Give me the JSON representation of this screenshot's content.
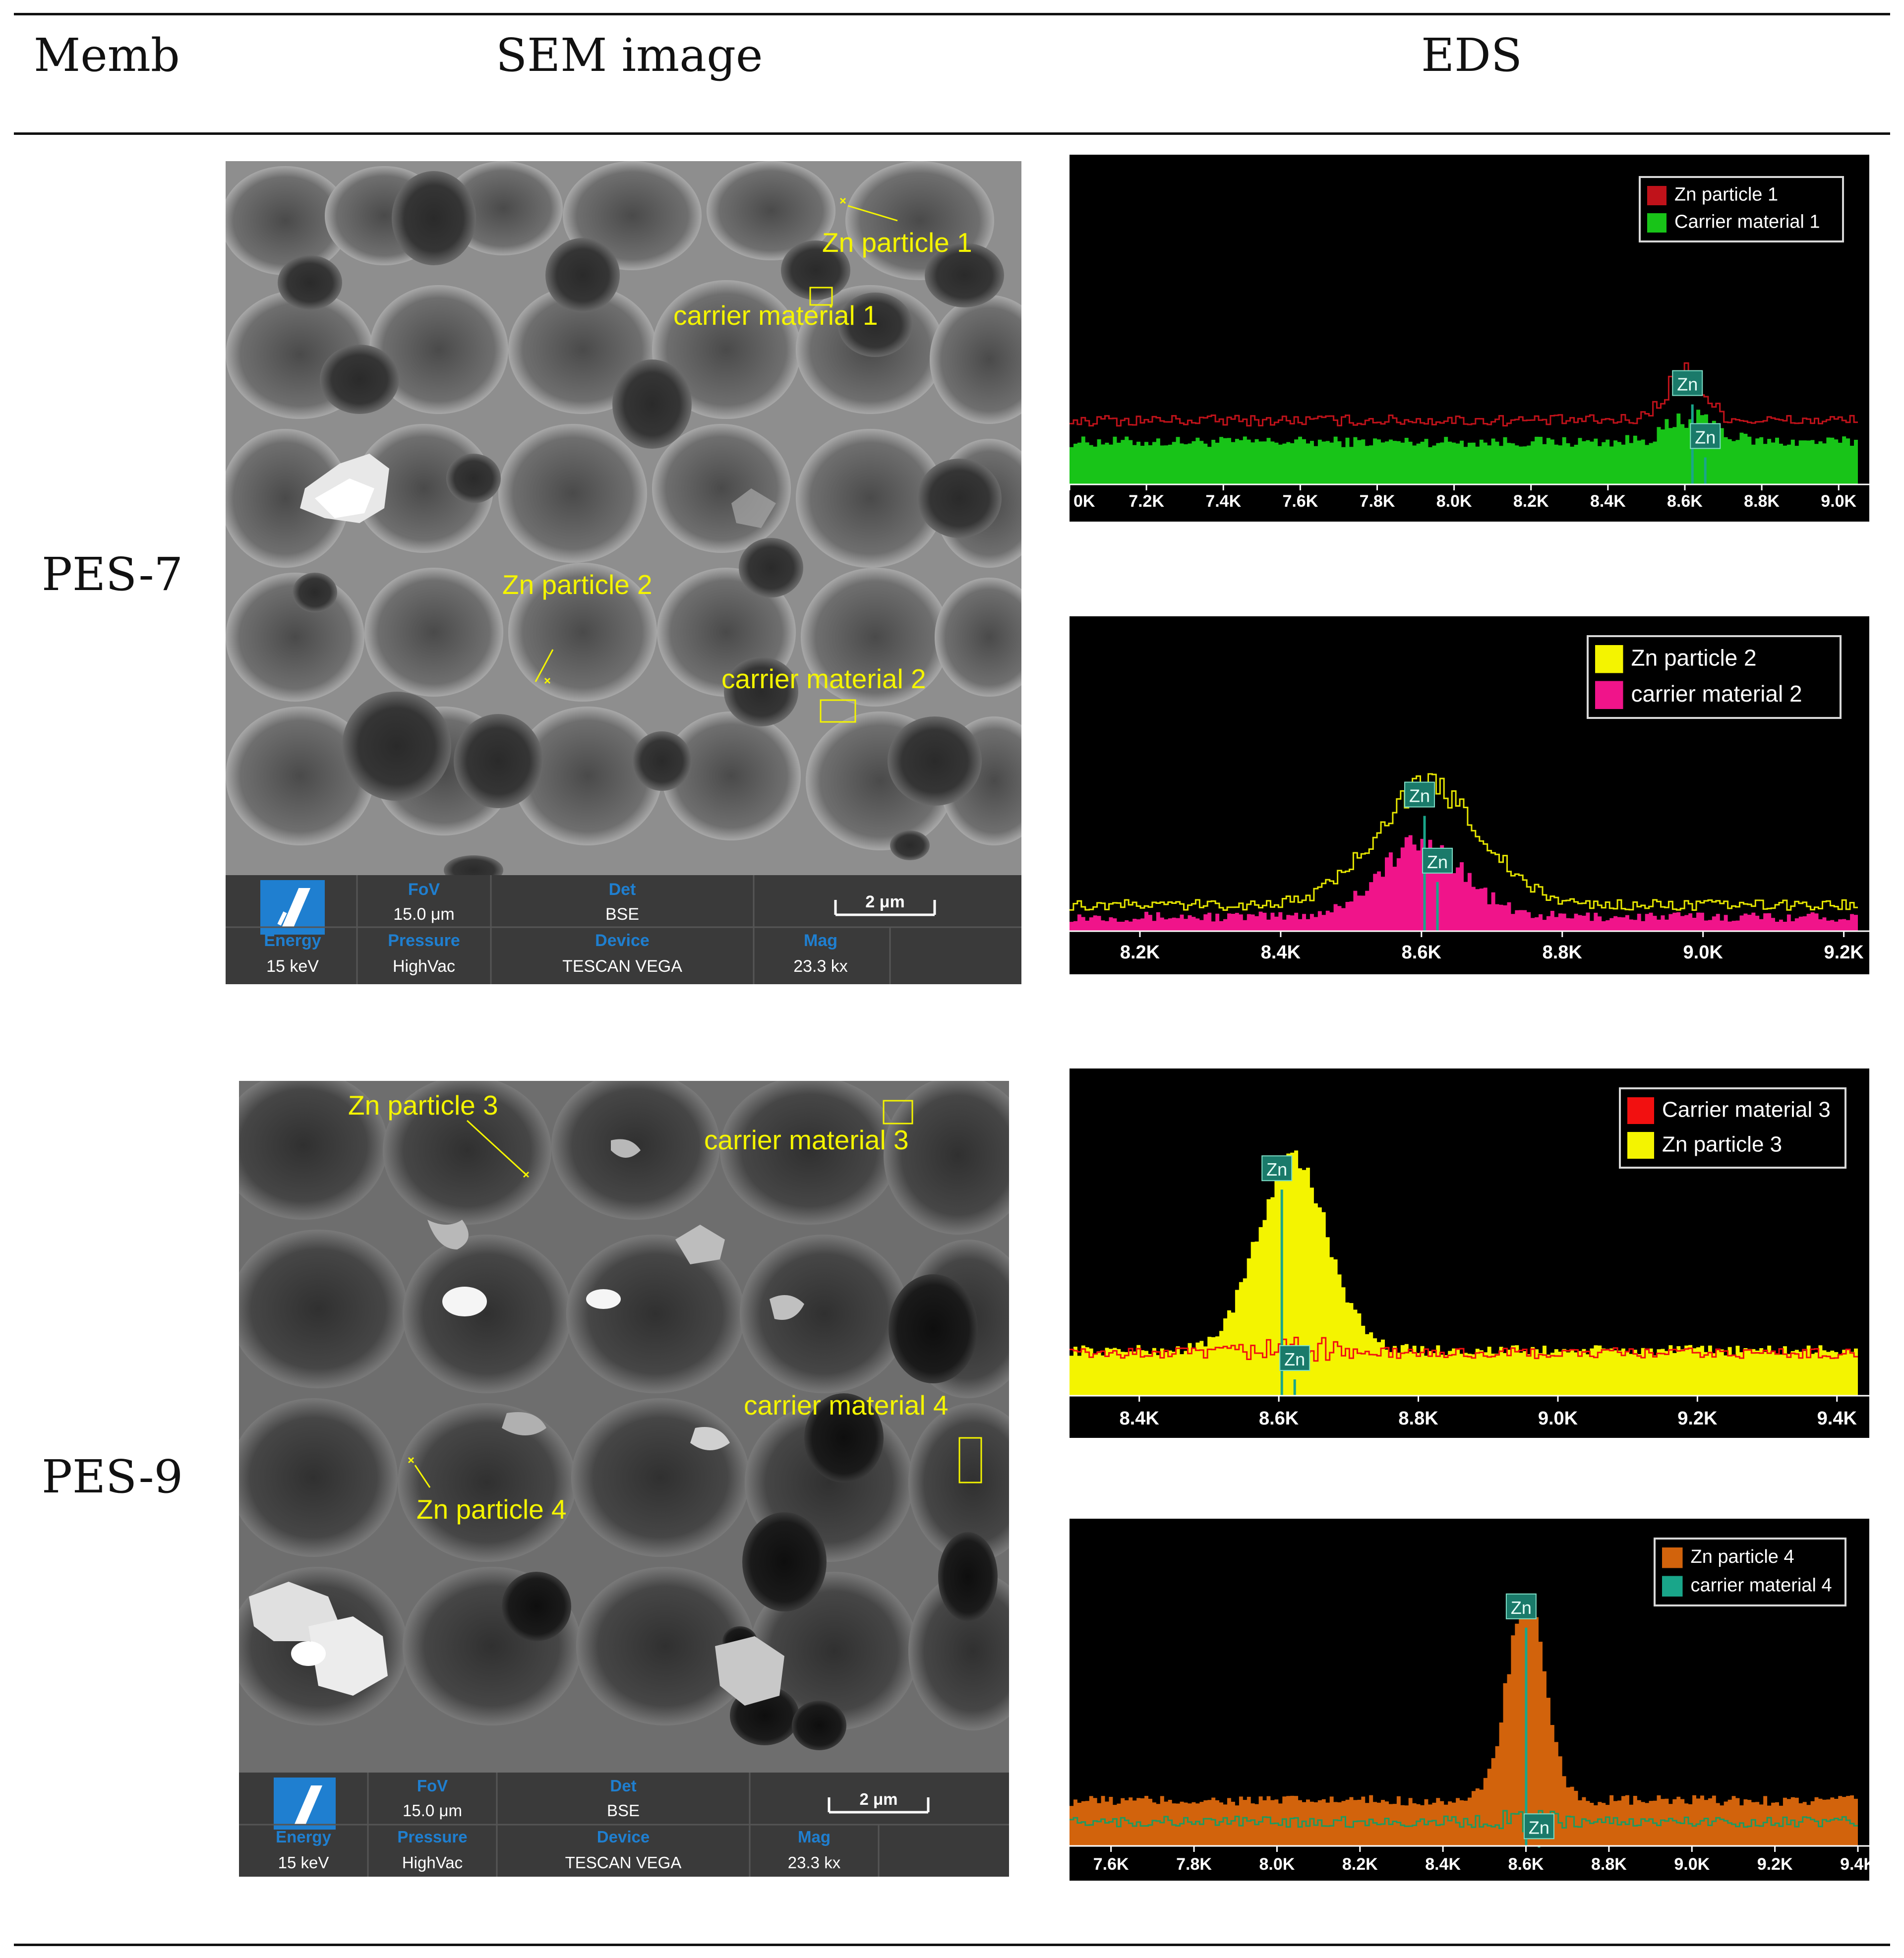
{
  "header": {
    "col1": "Memb",
    "col2": "SEM image",
    "col3": "EDS"
  },
  "rows": [
    {
      "label": "PES-7",
      "sem": {
        "annotations": [
          "Zn particle 1",
          "carrier material 1",
          "Zn particle 2",
          "carrier material 2"
        ],
        "info": {
          "fov_label": "FoV",
          "fov_value": "15.0 μm",
          "det_label": "Det",
          "det_value": "BSE",
          "scale": "2 μm",
          "energy_label": "Energy",
          "energy_value": "15 keV",
          "pressure_label": "Pressure",
          "pressure_value": "HighVac",
          "device_label": "Device",
          "device_value": "TESCAN VEGA",
          "mag_label": "Mag",
          "mag_value": "23.3 kx"
        }
      }
    },
    {
      "label": "PES-9",
      "sem": {
        "annotations": [
          "Zn particle 3",
          "carrier material 3",
          "carrier material 4",
          "Zn particle 4"
        ],
        "info": {
          "fov_label": "FoV",
          "fov_value": "15.0 μm",
          "det_label": "Det",
          "det_value": "BSE",
          "scale": "2 μm",
          "energy_label": "Energy",
          "energy_value": "15 keV",
          "pressure_label": "Pressure",
          "pressure_value": "HighVac",
          "device_label": "Device",
          "device_value": "TESCAN VEGA",
          "mag_label": "Mag",
          "mag_value": "23.3 kx"
        }
      }
    }
  ],
  "chart_data": [
    {
      "type": "area",
      "x_ticks": [
        "0K",
        "7.2K",
        "7.4K",
        "7.6K",
        "7.8K",
        "8.0K",
        "8.2K",
        "8.4K",
        "8.6K",
        "8.8K",
        "9.0K"
      ],
      "xlim": [
        7.0,
        9.05
      ],
      "peak_label": "Zn",
      "peak_x": 8.63,
      "legend": [
        {
          "name": "Zn particle 1",
          "color": "#c0121a"
        },
        {
          "name": "Carrier material 1",
          "color": "#18c418"
        }
      ],
      "series": [
        {
          "name": "Zn particle 1",
          "style": "line",
          "color": "#c0121a",
          "baseline": 0.21,
          "peak": 0.36,
          "peak_x": 8.6,
          "width": 0.05
        },
        {
          "name": "Carrier material 1",
          "style": "fill",
          "color": "#18c418",
          "baseline": 0.14,
          "peak": 0.2,
          "peak_x": 8.62,
          "width": 0.07
        }
      ]
    },
    {
      "type": "area",
      "x_ticks": [
        "8.2K",
        "8.4K",
        "8.6K",
        "8.8K",
        "9.0K",
        "9.2K"
      ],
      "xlim": [
        8.1,
        9.22
      ],
      "peak_label": "Zn",
      "peak_x": 8.61,
      "legend": [
        {
          "name": "Zn particle 2",
          "color": "#f4f400"
        },
        {
          "name": "carrier material 2",
          "color": "#f0148a"
        }
      ],
      "series": [
        {
          "name": "Zn particle 2",
          "style": "line",
          "color": "#e6e600",
          "baseline": 0.09,
          "peak": 0.5,
          "peak_x": 8.61,
          "width": 0.075
        },
        {
          "name": "carrier material 2",
          "style": "fill",
          "color": "#f0148a",
          "baseline": 0.05,
          "peak": 0.3,
          "peak_x": 8.6,
          "width": 0.06
        }
      ]
    },
    {
      "type": "area",
      "x_ticks": [
        "8.4K",
        "8.6K",
        "8.8K",
        "9.0K",
        "9.2K",
        "9.4K"
      ],
      "xlim": [
        8.3,
        9.43
      ],
      "peak_label": "Zn",
      "peak_x": 8.61,
      "legend": [
        {
          "name": "Carrier material 3",
          "color": "#f21010"
        },
        {
          "name": "Zn particle 3",
          "color": "#f4f400"
        }
      ],
      "series": [
        {
          "name": "Zn particle 3",
          "style": "fill",
          "color": "#f4f400",
          "baseline": 0.15,
          "peak": 0.78,
          "peak_x": 8.62,
          "width": 0.05
        },
        {
          "name": "Carrier material 3",
          "style": "line",
          "color": "#f21010",
          "baseline": 0.14,
          "peak": 0.16,
          "peak_x": 8.62,
          "width": 0.05
        }
      ]
    },
    {
      "type": "area",
      "x_ticks": [
        "7.6K",
        "7.8K",
        "8.0K",
        "8.2K",
        "8.4K",
        "8.6K",
        "8.8K",
        "9.0K",
        "9.2K",
        "9.4K"
      ],
      "xlim": [
        7.5,
        9.4
      ],
      "peak_label": "Zn",
      "peak_x": 8.61,
      "legend": [
        {
          "name": "Zn particle 4",
          "color": "#d2630c"
        },
        {
          "name": "carrier material 4",
          "color": "#19a68a"
        }
      ],
      "series": [
        {
          "name": "Zn particle 4",
          "style": "fill",
          "color": "#d2630c",
          "baseline": 0.15,
          "peak": 0.82,
          "peak_x": 8.6,
          "width": 0.045
        },
        {
          "name": "carrier material 4",
          "style": "line",
          "color": "#1f9a60",
          "baseline": 0.08,
          "peak": 0.09,
          "peak_x": 8.6,
          "width": 0.05
        }
      ]
    }
  ]
}
